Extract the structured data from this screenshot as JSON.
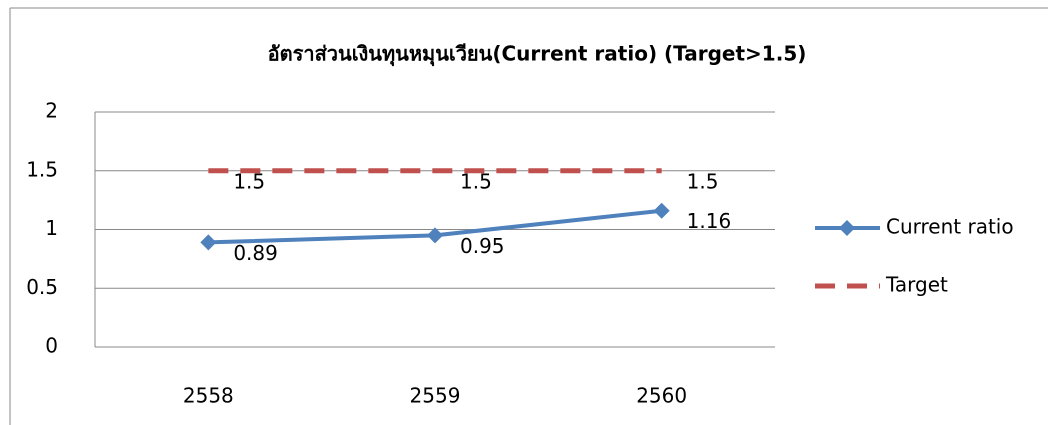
{
  "chart_data": {
    "type": "line",
    "title": "อัตราส่วนเงินทุนหมุนเวียน(Current ratio) (Target>1.5)",
    "categories": [
      "2558",
      "2559",
      "2560"
    ],
    "series": [
      {
        "name": "Current ratio",
        "color": "#4f81bd",
        "marker": "diamond",
        "dash": "solid",
        "values": [
          0.89,
          0.95,
          1.16
        ]
      },
      {
        "name": "Target",
        "color": "#c0504d",
        "marker": "none",
        "dash": "dashed",
        "values": [
          1.5,
          1.5,
          1.5
        ]
      }
    ],
    "ylim": [
      0,
      2
    ],
    "yticks": [
      0,
      0.5,
      1,
      1.5,
      2
    ],
    "grid": true,
    "legend": "right",
    "data_labels": true
  }
}
